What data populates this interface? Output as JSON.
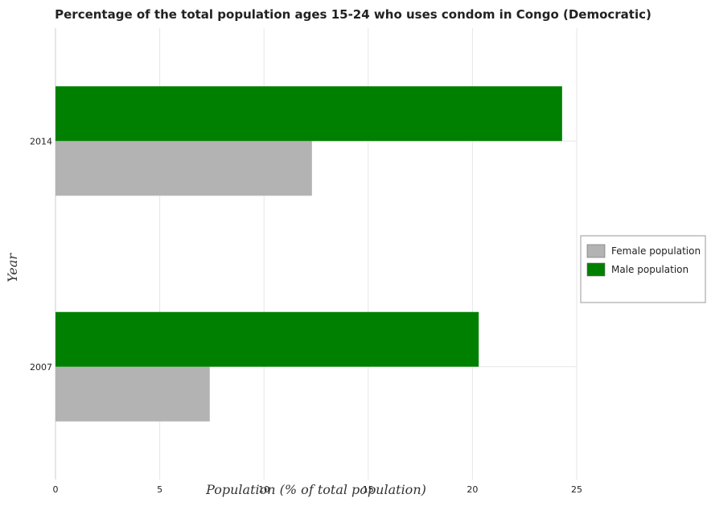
{
  "chart_data": {
    "type": "bar",
    "orientation": "horizontal",
    "title": "Percentage of the total population ages 15-24 who uses condom in Congo (Democratic)",
    "xlabel": "Population (% of total population)",
    "ylabel": "Year",
    "categories": [
      "2007",
      "2014"
    ],
    "series": [
      {
        "name": "Female population",
        "color": "#b3b3b3",
        "values": [
          7.4,
          12.3
        ]
      },
      {
        "name": "Male population",
        "color": "#008000",
        "values": [
          20.3,
          24.3
        ]
      }
    ],
    "xlim": [
      0,
      25
    ],
    "xticks": [
      0,
      5,
      10,
      15,
      20,
      25
    ],
    "grid": true,
    "legend_position": "right"
  }
}
